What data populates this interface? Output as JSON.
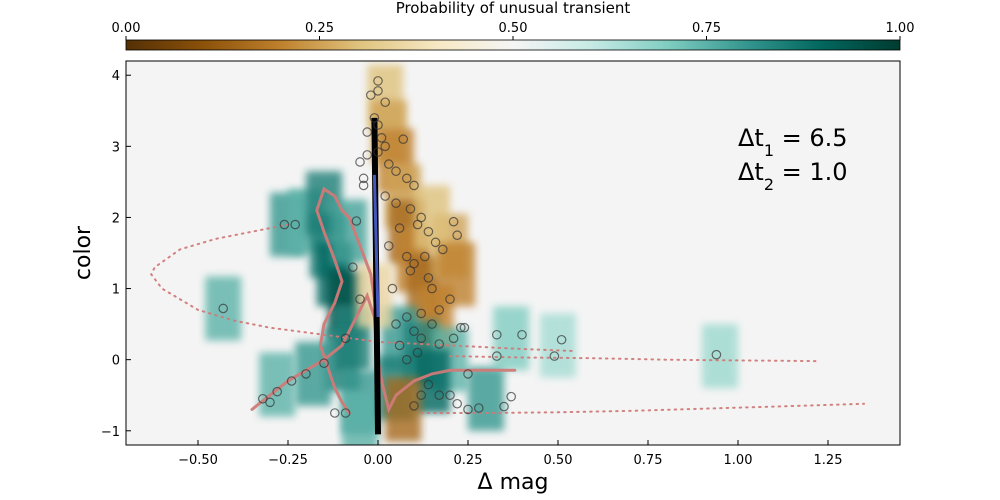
{
  "chart_data": {
    "type": "scatter",
    "title": "",
    "xlabel": "Δ mag",
    "ylabel": "color",
    "xlim": [
      -0.7,
      1.45
    ],
    "ylim": [
      -1.2,
      4.2
    ],
    "xticks": [
      -0.5,
      -0.25,
      0.0,
      0.25,
      0.5,
      0.75,
      1.0,
      1.25
    ],
    "xtick_labels": [
      "−0.50",
      "−0.25",
      "0.00",
      "0.25",
      "0.50",
      "0.75",
      "1.00",
      "1.25"
    ],
    "yticks": [
      -1,
      0,
      1,
      2,
      3,
      4
    ],
    "ytick_labels": [
      "−1",
      "0",
      "1",
      "2",
      "3",
      "4"
    ],
    "grid": false,
    "colorbar": {
      "label": "Probability of unusual transient",
      "range": [
        0,
        1
      ],
      "ticks": [
        0,
        0.25,
        0.5,
        0.75,
        1.0
      ],
      "tick_labels": [
        "0.00",
        "0.25",
        "0.50",
        "0.75",
        "1.00"
      ],
      "colors": [
        "#543005",
        "#8c510a",
        "#bf812d",
        "#dfc27d",
        "#f6e8c3",
        "#f5f5f5",
        "#c7eae5",
        "#80cdc1",
        "#35978f",
        "#01665e",
        "#003c30"
      ],
      "placement": "top"
    },
    "annotation": {
      "line1_prefix": "Δt",
      "line1_sub": "1",
      "line1_value": " = 6.5",
      "line2_prefix": "Δt",
      "line2_sub": "2",
      "line2_value": " = 1.0"
    },
    "density_cells": [
      {
        "x": -0.43,
        "y": 0.72,
        "p": 0.75
      },
      {
        "x": -0.25,
        "y": 1.9,
        "p": 0.8
      },
      {
        "x": -0.2,
        "y": 1.95,
        "p": 0.75
      },
      {
        "x": -0.15,
        "y": 2.2,
        "p": 0.85
      },
      {
        "x": -0.14,
        "y": 1.6,
        "p": 0.85
      },
      {
        "x": -0.12,
        "y": 1.2,
        "p": 0.9
      },
      {
        "x": -0.09,
        "y": 0.8,
        "p": 0.95
      },
      {
        "x": -0.07,
        "y": 0.3,
        "p": 0.85
      },
      {
        "x": -0.1,
        "y": 0.0,
        "p": 0.85
      },
      {
        "x": -0.18,
        "y": -0.2,
        "p": 0.8
      },
      {
        "x": -0.28,
        "y": -0.35,
        "p": 0.75
      },
      {
        "x": -0.05,
        "y": -0.6,
        "p": 0.8
      },
      {
        "x": -0.05,
        "y": -0.9,
        "p": 0.75
      },
      {
        "x": -0.08,
        "y": 1.8,
        "p": 0.78
      },
      {
        "x": 0.02,
        "y": 3.7,
        "p": 0.3
      },
      {
        "x": 0.03,
        "y": 3.2,
        "p": 0.25
      },
      {
        "x": 0.05,
        "y": 2.8,
        "p": 0.2
      },
      {
        "x": 0.07,
        "y": 2.3,
        "p": 0.25
      },
      {
        "x": 0.08,
        "y": 1.8,
        "p": 0.15
      },
      {
        "x": 0.1,
        "y": 1.4,
        "p": 0.2
      },
      {
        "x": 0.13,
        "y": 1.0,
        "p": 0.15
      },
      {
        "x": 0.16,
        "y": 0.6,
        "p": 0.2
      },
      {
        "x": 0.2,
        "y": 1.6,
        "p": 0.25
      },
      {
        "x": 0.15,
        "y": 2.0,
        "p": 0.3
      },
      {
        "x": 0.22,
        "y": 1.2,
        "p": 0.2
      },
      {
        "x": 0.06,
        "y": 0.3,
        "p": 0.8
      },
      {
        "x": 0.12,
        "y": 0.1,
        "p": 0.85
      },
      {
        "x": 0.2,
        "y": 0.0,
        "p": 0.75
      },
      {
        "x": 0.15,
        "y": -0.3,
        "p": 0.9
      },
      {
        "x": 0.05,
        "y": -0.4,
        "p": 0.85
      },
      {
        "x": 0.07,
        "y": -0.7,
        "p": 0.15
      },
      {
        "x": 0.3,
        "y": -0.55,
        "p": 0.8
      },
      {
        "x": 0.37,
        "y": 0.3,
        "p": 0.7
      },
      {
        "x": 0.5,
        "y": 0.2,
        "p": 0.65
      },
      {
        "x": 0.95,
        "y": 0.05,
        "p": 0.66
      },
      {
        "x": -0.01,
        "y": 0.9,
        "p": 0.35
      }
    ],
    "series": [
      {
        "values": [
          {
            "x": 0.0,
            "y": 3.92
          },
          {
            "x": -0.02,
            "y": 3.72
          },
          {
            "x": 0.0,
            "y": 3.78
          },
          {
            "x": 0.02,
            "y": 3.62
          },
          {
            "x": -0.01,
            "y": 3.4
          },
          {
            "x": 0.0,
            "y": 3.3
          },
          {
            "x": -0.03,
            "y": 3.2
          },
          {
            "x": 0.01,
            "y": 3.12
          },
          {
            "x": 0.02,
            "y": 3.0
          },
          {
            "x": 0.0,
            "y": 2.92
          },
          {
            "x": -0.05,
            "y": 2.78
          },
          {
            "x": 0.03,
            "y": 2.75
          },
          {
            "x": 0.05,
            "y": 2.65
          },
          {
            "x": -0.04,
            "y": 2.55
          },
          {
            "x": 0.08,
            "y": 2.55
          },
          {
            "x": 0.1,
            "y": 2.45
          },
          {
            "x": 0.07,
            "y": 3.1
          },
          {
            "x": 0.02,
            "y": 2.3
          },
          {
            "x": 0.05,
            "y": 2.2
          },
          {
            "x": 0.09,
            "y": 2.12
          },
          {
            "x": 0.12,
            "y": 2.0
          },
          {
            "x": 0.11,
            "y": 1.9
          },
          {
            "x": 0.06,
            "y": 1.85
          },
          {
            "x": 0.14,
            "y": 1.8
          },
          {
            "x": 0.16,
            "y": 1.65
          },
          {
            "x": 0.21,
            "y": 1.94
          },
          {
            "x": 0.22,
            "y": 1.75
          },
          {
            "x": 0.18,
            "y": 1.55
          },
          {
            "x": 0.13,
            "y": 1.45
          },
          {
            "x": 0.1,
            "y": 1.35
          },
          {
            "x": 0.09,
            "y": 1.25
          },
          {
            "x": 0.14,
            "y": 1.15
          },
          {
            "x": 0.15,
            "y": 1.0
          },
          {
            "x": 0.2,
            "y": 0.85
          },
          {
            "x": 0.17,
            "y": 0.7
          },
          {
            "x": 0.12,
            "y": 0.65
          },
          {
            "x": 0.08,
            "y": 0.6
          },
          {
            "x": 0.05,
            "y": 0.5
          },
          {
            "x": 0.1,
            "y": 0.4
          },
          {
            "x": 0.15,
            "y": 0.5
          },
          {
            "x": 0.21,
            "y": 0.3
          },
          {
            "x": 0.23,
            "y": 0.45
          },
          {
            "x": 0.06,
            "y": 0.2
          },
          {
            "x": 0.11,
            "y": 0.1
          },
          {
            "x": 0.17,
            "y": 0.22
          },
          {
            "x": 0.04,
            "y": 1.0
          },
          {
            "x": 0.08,
            "y": 1.45
          },
          {
            "x": 0.03,
            "y": 1.6
          },
          {
            "x": -0.06,
            "y": 1.95
          },
          {
            "x": -0.04,
            "y": 2.45
          },
          {
            "x": -0.03,
            "y": 2.88
          },
          {
            "x": -0.09,
            "y": 0.3
          },
          {
            "x": -0.07,
            "y": 1.3
          },
          {
            "x": -0.05,
            "y": 0.85
          },
          {
            "x": -0.43,
            "y": 0.72
          },
          {
            "x": -0.26,
            "y": 1.9
          },
          {
            "x": -0.23,
            "y": 1.9
          },
          {
            "x": -0.09,
            "y": -0.75
          },
          {
            "x": -0.12,
            "y": -0.75
          },
          {
            "x": -0.32,
            "y": -0.55
          },
          {
            "x": -0.3,
            "y": -0.6
          },
          {
            "x": -0.28,
            "y": -0.45
          },
          {
            "x": -0.24,
            "y": -0.3
          },
          {
            "x": -0.2,
            "y": -0.2
          },
          {
            "x": -0.15,
            "y": -0.05
          },
          {
            "x": 0.12,
            "y": -0.5
          },
          {
            "x": 0.17,
            "y": -0.5
          },
          {
            "x": 0.22,
            "y": -0.62
          },
          {
            "x": 0.25,
            "y": -0.7
          },
          {
            "x": 0.28,
            "y": -0.68
          },
          {
            "x": 0.35,
            "y": -0.66
          },
          {
            "x": 0.37,
            "y": -0.52
          },
          {
            "x": 0.25,
            "y": -0.2
          },
          {
            "x": 0.1,
            "y": -0.65
          },
          {
            "x": 0.33,
            "y": 0.35
          },
          {
            "x": 0.4,
            "y": 0.35
          },
          {
            "x": 0.24,
            "y": 0.45
          },
          {
            "x": 0.33,
            "y": 0.05
          },
          {
            "x": 0.49,
            "y": 0.05
          },
          {
            "x": 0.51,
            "y": 0.28
          },
          {
            "x": 0.94,
            "y": 0.07
          },
          {
            "x": 0.12,
            "y": 0.3
          },
          {
            "x": 0.08,
            "y": 0.0
          },
          {
            "x": 0.14,
            "y": -0.35
          },
          {
            "x": 0.2,
            "y": -0.5
          }
        ]
      }
    ],
    "curves": [
      {
        "x": [
          -0.35,
          -0.3,
          -0.25,
          -0.2,
          -0.15,
          -0.1,
          -0.07,
          -0.05,
          -0.03,
          -0.01,
          0.0,
          0.01,
          0.02,
          0.03,
          0.05,
          0.1,
          0.15,
          0.2,
          0.3,
          0.38
        ],
        "y": [
          -0.7,
          -0.5,
          -0.3,
          -0.15,
          0.0,
          0.2,
          0.5,
          0.7,
          0.9,
          0.6,
          0.0,
          -0.3,
          -0.5,
          -0.7,
          -0.5,
          -0.3,
          -0.2,
          -0.15,
          -0.15,
          -0.15
        ]
      },
      {
        "x": [
          -0.08,
          -0.1,
          -0.12,
          -0.14,
          -0.16,
          -0.15,
          -0.12,
          -0.1,
          -0.12,
          -0.15,
          -0.17,
          -0.15,
          -0.12,
          -0.1,
          -0.08,
          -0.05,
          -0.02,
          0.0
        ],
        "y": [
          -0.75,
          -0.6,
          -0.4,
          -0.1,
          0.2,
          0.5,
          0.8,
          1.1,
          1.4,
          1.8,
          2.1,
          2.4,
          2.3,
          2.1,
          2.0,
          1.6,
          1.2,
          0.5
        ]
      },
      {
        "x": [
          -0.25,
          -0.35,
          -0.45,
          -0.55,
          -0.62,
          -0.63,
          -0.6,
          -0.5,
          -0.4,
          -0.3,
          -0.15,
          0.0,
          0.2,
          0.4,
          0.55
        ],
        "y": [
          1.9,
          1.8,
          1.7,
          1.55,
          1.3,
          1.2,
          1.0,
          0.7,
          0.55,
          0.45,
          0.35,
          0.25,
          0.2,
          0.15,
          0.12
        ]
      },
      {
        "x": [
          0.12,
          0.3,
          0.5,
          0.7,
          0.9,
          1.1,
          1.35
        ],
        "y": [
          -0.75,
          -0.75,
          -0.74,
          -0.72,
          -0.69,
          -0.66,
          -0.62
        ]
      },
      {
        "x": [
          0.2,
          0.4,
          0.6,
          0.8,
          1.0,
          1.22
        ],
        "y": [
          0.05,
          0.03,
          0.02,
          0.0,
          -0.01,
          -0.02
        ]
      }
    ]
  }
}
